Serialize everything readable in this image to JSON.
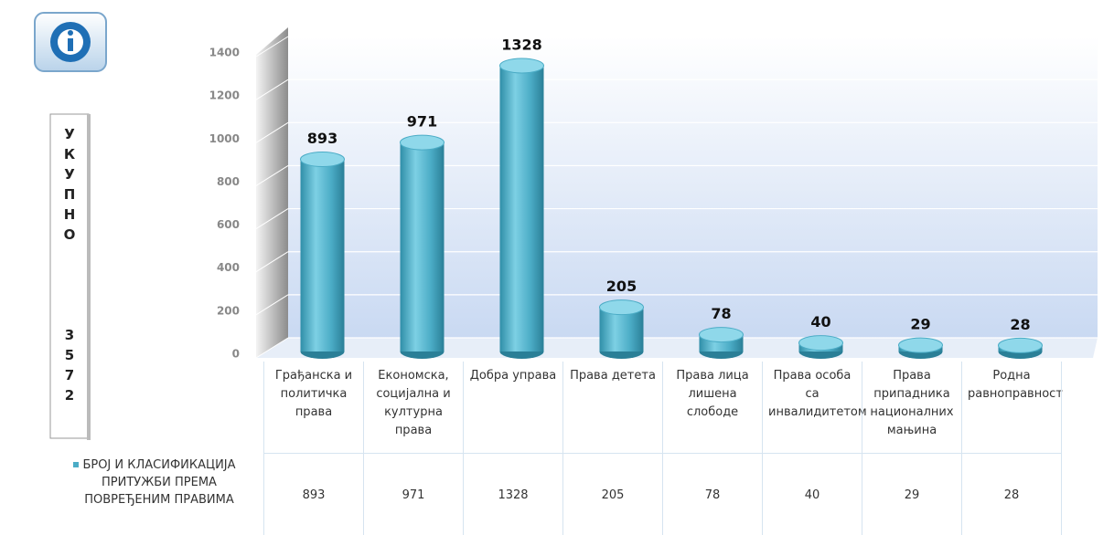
{
  "chart_data": {
    "type": "bar",
    "categories": [
      "Грађанска и политичка права",
      "Економска, социјална и културна права",
      "Добра управа",
      "Права детета",
      "Права лица лишена слободе",
      "Права особа са инвалидитетом",
      "Права припадника националних мањина",
      "Родна равноправност"
    ],
    "series": [
      {
        "name": "БРОЈ И КЛАСИФИКАЦИЈА ПРИТУЖБИ ПРЕМА ПОВРЕЂЕНИМ ПРАВИМА",
        "color": "#4bacc6",
        "values": [
          893,
          971,
          1328,
          205,
          78,
          40,
          29,
          28
        ]
      }
    ],
    "ylim": [
      0,
      1400
    ],
    "yticks": [
      0,
      200,
      400,
      600,
      800,
      1000,
      1200,
      1400
    ],
    "grid": true,
    "total_label": "УКУПНО",
    "total": 3572
  }
}
